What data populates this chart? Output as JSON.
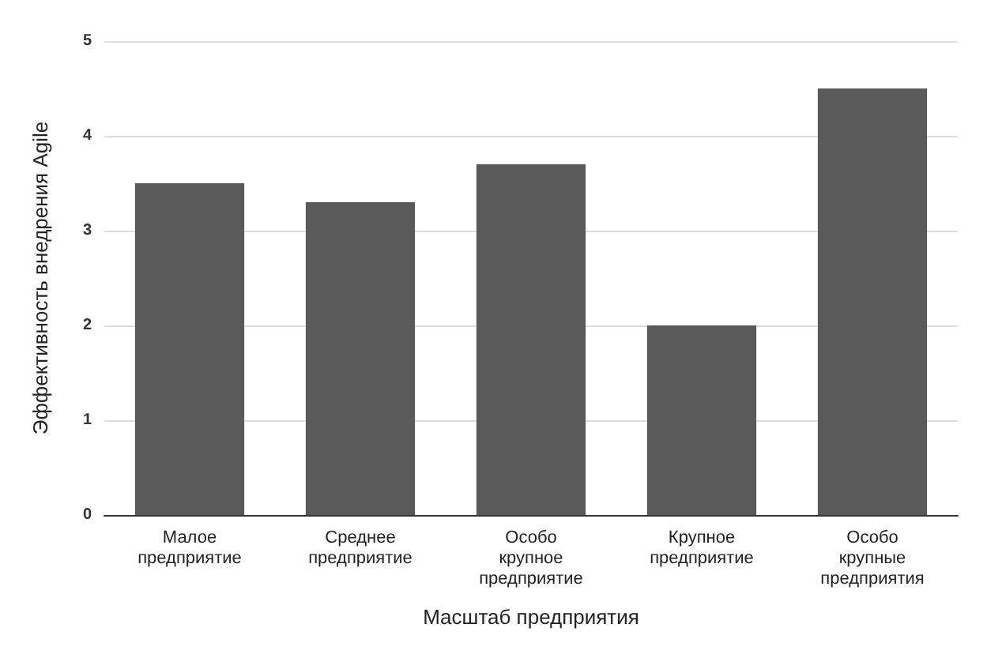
{
  "chart_data": {
    "type": "bar",
    "xlabel": "Масштаб предприятия",
    "ylabel": "Эффективность внедрения Agile",
    "categories": [
      "Малое\nпредприятие",
      "Среднее\nпредприятие",
      "Особо\nкрупное\nпредприятие",
      "Крупное\nпредприятие",
      "Особо\nкрупные\nпредприятия"
    ],
    "values": [
      3.5,
      3.3,
      3.7,
      2.0,
      4.5
    ],
    "color": "#595959",
    "ylim": [
      0,
      5
    ],
    "yticks": [
      0,
      1,
      2,
      3,
      4,
      5
    ],
    "grid": "y"
  }
}
